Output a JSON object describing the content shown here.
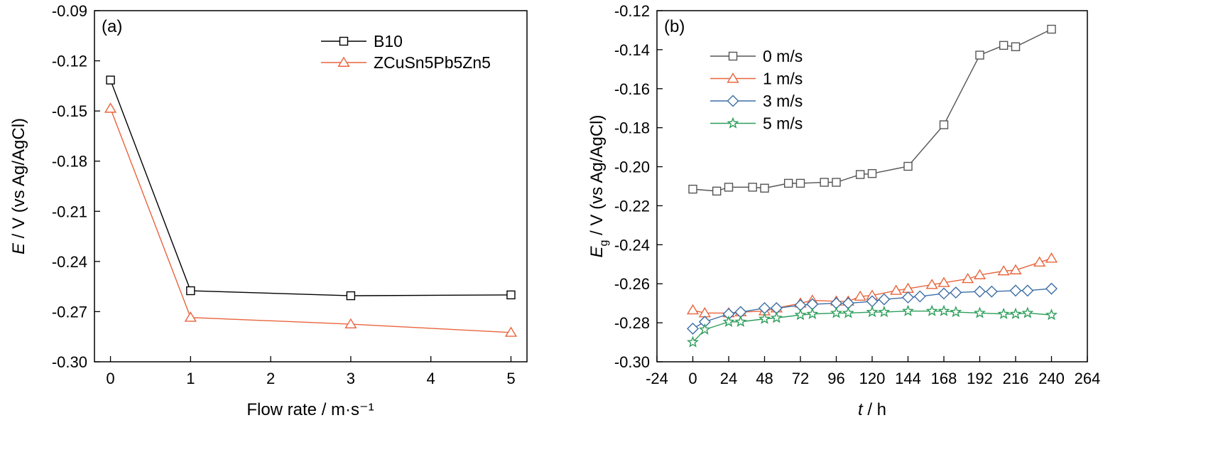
{
  "chart_data": [
    {
      "type": "line",
      "panel_label": "(a)",
      "xlabel": "Flow rate / m·s⁻¹",
      "ylabel_italic": "E",
      "ylabel_rest": " / V (vs Ag/AgCl)",
      "xlim": [
        -0.2,
        5.2
      ],
      "ylim": [
        -0.3,
        -0.09
      ],
      "xticks": [
        0,
        1,
        2,
        3,
        4,
        5
      ],
      "yticks": [
        -0.09,
        -0.12,
        -0.15,
        -0.18,
        -0.21,
        -0.24,
        -0.27,
        -0.3
      ],
      "ytick_labels": [
        "-0.09",
        "-0.12",
        "-0.15",
        "-0.18",
        "-0.21",
        "-0.24",
        "-0.27",
        "-0.30"
      ],
      "legend_position": "top-right",
      "series": [
        {
          "name": "B10",
          "color": "#000000",
          "marker": "square",
          "x": [
            0,
            1,
            3,
            5
          ],
          "y": [
            -0.1315,
            -0.2575,
            -0.2605,
            -0.26
          ]
        },
        {
          "name": "ZCuSn5Pb5Zn5",
          "color": "#e8643c",
          "marker": "triangle",
          "x": [
            0,
            1,
            3,
            5
          ],
          "y": [
            -0.1485,
            -0.2735,
            -0.2775,
            -0.2825
          ]
        }
      ]
    },
    {
      "type": "line",
      "panel_label": "(b)",
      "xlabel_italic": "t",
      "xlabel_rest": " / h",
      "ylabel_italic": "E",
      "ylabel_sub": "g",
      "ylabel_rest": " / V (vs Ag/AgCl)",
      "xlim": [
        -24,
        264
      ],
      "ylim": [
        -0.3,
        -0.12
      ],
      "xticks": [
        -24,
        0,
        24,
        48,
        72,
        96,
        120,
        144,
        168,
        192,
        216,
        240,
        264
      ],
      "yticks": [
        -0.12,
        -0.14,
        -0.16,
        -0.18,
        -0.2,
        -0.22,
        -0.24,
        -0.26,
        -0.28,
        -0.3
      ],
      "ytick_labels": [
        "-0.12",
        "-0.14",
        "-0.16",
        "-0.18",
        "-0.20",
        "-0.22",
        "-0.24",
        "-0.26",
        "-0.28",
        "-0.30"
      ],
      "legend_position": "top-left",
      "series": [
        {
          "name": "0 m/s",
          "color": "#555555",
          "marker": "square",
          "x": [
            0,
            16,
            24,
            40,
            48,
            64,
            72,
            88,
            96,
            112,
            120,
            144,
            168,
            192,
            208,
            216,
            240
          ],
          "y": [
            -0.2115,
            -0.2125,
            -0.2105,
            -0.2105,
            -0.211,
            -0.2085,
            -0.2085,
            -0.208,
            -0.208,
            -0.204,
            -0.2035,
            -0.1998,
            -0.1785,
            -0.1428,
            -0.1378,
            -0.1385,
            -0.1295
          ]
        },
        {
          "name": "1 m/s",
          "color": "#e8643c",
          "marker": "triangle",
          "x": [
            0,
            8,
            24,
            32,
            48,
            56,
            72,
            80,
            96,
            104,
            112,
            120,
            136,
            144,
            160,
            168,
            184,
            192,
            208,
            216,
            232,
            240
          ],
          "y": [
            -0.2735,
            -0.275,
            -0.275,
            -0.2745,
            -0.274,
            -0.2725,
            -0.27,
            -0.2685,
            -0.269,
            -0.269,
            -0.2665,
            -0.266,
            -0.2635,
            -0.2625,
            -0.2605,
            -0.2595,
            -0.2575,
            -0.2555,
            -0.2535,
            -0.253,
            -0.249,
            -0.247
          ]
        },
        {
          "name": "3 m/s",
          "color": "#3c6ea5",
          "marker": "diamond",
          "x": [
            0,
            8,
            24,
            32,
            48,
            56,
            72,
            80,
            96,
            104,
            120,
            128,
            144,
            152,
            168,
            176,
            192,
            200,
            216,
            224,
            240
          ],
          "y": [
            -0.283,
            -0.2795,
            -0.2755,
            -0.2745,
            -0.2725,
            -0.2725,
            -0.271,
            -0.2705,
            -0.27,
            -0.27,
            -0.269,
            -0.268,
            -0.267,
            -0.2665,
            -0.265,
            -0.2645,
            -0.264,
            -0.264,
            -0.2635,
            -0.2635,
            -0.2625
          ]
        },
        {
          "name": "5 m/s",
          "color": "#2e9e5b",
          "marker": "star",
          "x": [
            0,
            8,
            24,
            32,
            48,
            56,
            72,
            80,
            96,
            104,
            120,
            128,
            144,
            160,
            168,
            176,
            192,
            208,
            216,
            224,
            240
          ],
          "y": [
            -0.29,
            -0.2835,
            -0.2795,
            -0.2795,
            -0.278,
            -0.2775,
            -0.276,
            -0.2755,
            -0.275,
            -0.275,
            -0.2745,
            -0.2745,
            -0.274,
            -0.274,
            -0.274,
            -0.2745,
            -0.275,
            -0.2755,
            -0.2755,
            -0.275,
            -0.276
          ]
        }
      ]
    }
  ]
}
